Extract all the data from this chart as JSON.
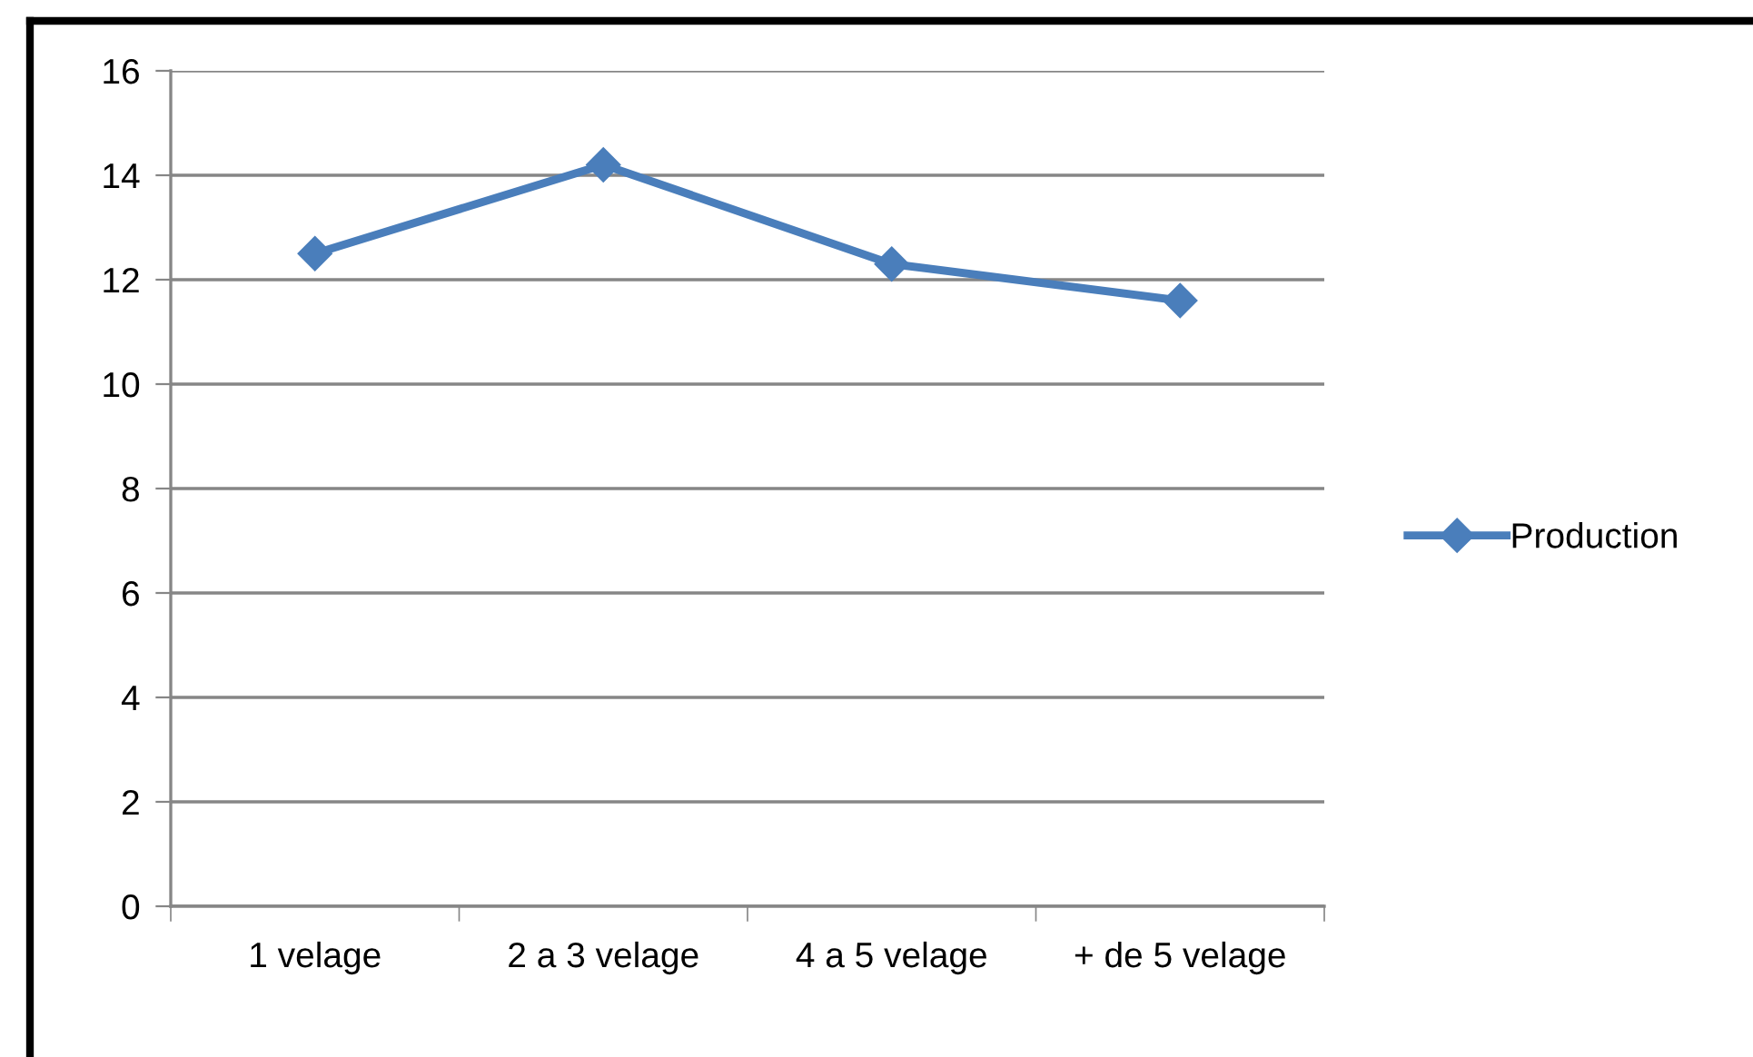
{
  "chart_data": {
    "type": "line",
    "categories": [
      "1 velage",
      "2 a 3 velage",
      "4 a 5 velage",
      "+ de 5 velage"
    ],
    "series": [
      {
        "name": "Production",
        "color": "#4a7ebb",
        "values": [
          12.5,
          14.2,
          12.3,
          11.6
        ]
      }
    ],
    "ylim": [
      0,
      16
    ],
    "yticks": [
      0,
      2,
      4,
      6,
      8,
      10,
      12,
      14,
      16
    ],
    "grid": "y",
    "legend": "right",
    "marker": "diamond",
    "line_style": "solid"
  }
}
